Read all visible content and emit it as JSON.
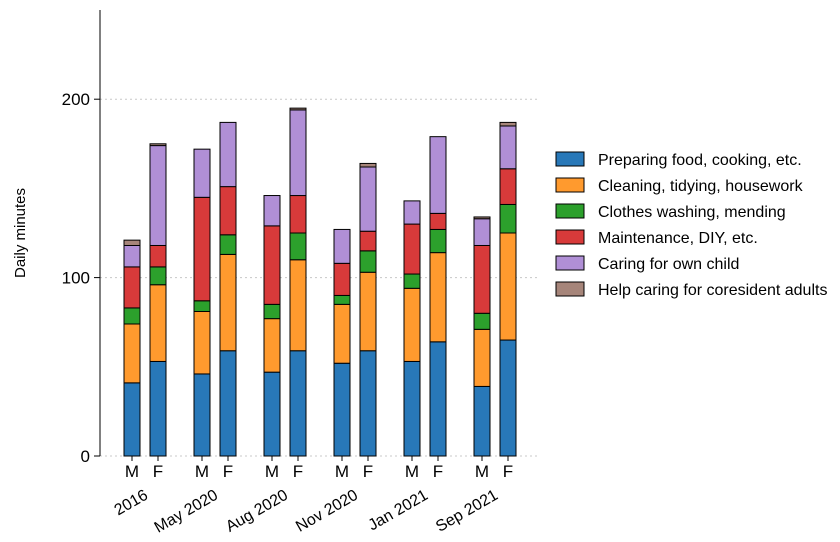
{
  "chart_data": {
    "type": "bar",
    "stacked": true,
    "ylabel": "Daily minutes",
    "ylim": [
      0,
      250
    ],
    "yticks": [
      0,
      100,
      200
    ],
    "grid": true,
    "legend_position": "right",
    "groups": [
      "2016",
      "May 2020",
      "Aug 2020",
      "Nov 2020",
      "Jan 2021",
      "Sep 2021"
    ],
    "sub_categories": [
      "M",
      "F"
    ],
    "bars": [
      {
        "group": "2016",
        "sex": "M",
        "values": [
          41,
          33,
          9,
          23,
          12,
          3
        ]
      },
      {
        "group": "2016",
        "sex": "F",
        "values": [
          53,
          43,
          10,
          12,
          56,
          1
        ]
      },
      {
        "group": "May 2020",
        "sex": "M",
        "values": [
          46,
          35,
          6,
          58,
          27,
          0
        ]
      },
      {
        "group": "May 2020",
        "sex": "F",
        "values": [
          59,
          54,
          11,
          27,
          36,
          0
        ]
      },
      {
        "group": "Aug 2020",
        "sex": "M",
        "values": [
          47,
          30,
          8,
          44,
          17,
          0
        ]
      },
      {
        "group": "Aug 2020",
        "sex": "F",
        "values": [
          59,
          51,
          15,
          21,
          48,
          1
        ]
      },
      {
        "group": "Nov 2020",
        "sex": "M",
        "values": [
          52,
          33,
          5,
          18,
          19,
          0
        ]
      },
      {
        "group": "Nov 2020",
        "sex": "F",
        "values": [
          59,
          44,
          12,
          11,
          36,
          2
        ]
      },
      {
        "group": "Jan 2021",
        "sex": "M",
        "values": [
          53,
          41,
          8,
          28,
          13,
          0
        ]
      },
      {
        "group": "Jan 2021",
        "sex": "F",
        "values": [
          64,
          50,
          13,
          9,
          43,
          0
        ]
      },
      {
        "group": "Sep 2021",
        "sex": "M",
        "values": [
          39,
          32,
          9,
          38,
          15,
          1
        ]
      },
      {
        "group": "Sep 2021",
        "sex": "F",
        "values": [
          65,
          60,
          16,
          20,
          24,
          2
        ]
      }
    ],
    "series": [
      {
        "name": "Preparing food, cooking, etc.",
        "color": "#2878b8"
      },
      {
        "name": "Cleaning, tidying, housework",
        "color": "#ff9a2e"
      },
      {
        "name": "Clothes washing, mending",
        "color": "#2ca02c"
      },
      {
        "name": "Maintenance, DIY, etc.",
        "color": "#d83a3a"
      },
      {
        "name": "Caring for own child",
        "color": "#b08fd6"
      },
      {
        "name": "Help caring for coresident adults",
        "color": "#a6857a"
      }
    ]
  }
}
